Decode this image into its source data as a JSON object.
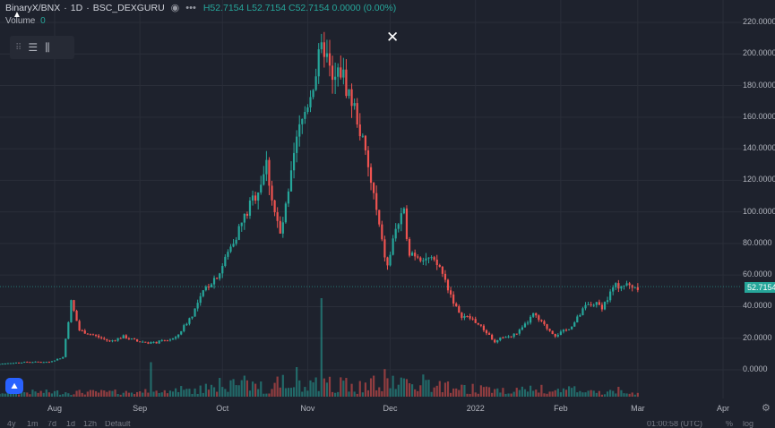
{
  "legend": {
    "symbol": "BinaryX/BNX",
    "interval": "1D",
    "exchange": "BSC_DEXGURU",
    "ohlc": "H52.7154 L52.7154 C52.7154 0.0000 (0.00%)",
    "volume_label": "Volume",
    "volume_value": "0"
  },
  "close_label": "✕",
  "current_price": "52.7154",
  "bottom_toolbar": [
    "4y",
    "1m",
    "7d",
    "1d",
    "12h",
    "Default"
  ],
  "bottom_time": "01:00:58 (UTC)",
  "bottom_right": [
    "%",
    "log"
  ],
  "colors": {
    "up": "#26a69a",
    "down": "#ef5350",
    "background": "#1e222d",
    "grid": "#2a2e39"
  },
  "icons": [
    "eye-icon",
    "more-icon",
    "grip-icon",
    "indicators-icon",
    "settings-icon",
    "close-icon",
    "tradingview-logo-icon",
    "gear-icon"
  ],
  "chart_data": {
    "type": "candlestick",
    "symbol": "BinaryX/BNX",
    "y_ticks": [
      "220.0000",
      "200.0000",
      "180.0000",
      "160.0000",
      "140.0000",
      "120.0000",
      "100.0000",
      "80.0000",
      "60.0000",
      "40.0000",
      "20.0000",
      "0.0000"
    ],
    "y_tick_values": [
      220,
      200,
      180,
      160,
      140,
      120,
      100,
      80,
      60,
      40,
      20,
      0
    ],
    "x_ticks": [
      "Aug",
      "Sep",
      "Oct",
      "Nov",
      "Dec",
      "2022",
      "Feb",
      "Mar",
      "Apr"
    ],
    "x_tick_days": [
      0,
      31,
      61,
      92,
      122,
      153,
      184,
      212,
      243
    ],
    "first_day": -27,
    "anchors": [
      [
        -27,
        3
      ],
      [
        -10,
        5
      ],
      [
        -2,
        5
      ],
      [
        3,
        8
      ],
      [
        6,
        43
      ],
      [
        9,
        25
      ],
      [
        14,
        22
      ],
      [
        20,
        18
      ],
      [
        25,
        21
      ],
      [
        30,
        18
      ],
      [
        36,
        17
      ],
      [
        44,
        20
      ],
      [
        50,
        35
      ],
      [
        55,
        52
      ],
      [
        60,
        62
      ],
      [
        65,
        82
      ],
      [
        70,
        100
      ],
      [
        74,
        115
      ],
      [
        77,
        130
      ],
      [
        80,
        100
      ],
      [
        82,
        85
      ],
      [
        85,
        110
      ],
      [
        88,
        145
      ],
      [
        92,
        170
      ],
      [
        96,
        195
      ],
      [
        98,
        205
      ],
      [
        101,
        180
      ],
      [
        104,
        190
      ],
      [
        107,
        175
      ],
      [
        110,
        160
      ],
      [
        113,
        135
      ],
      [
        116,
        110
      ],
      [
        119,
        80
      ],
      [
        121,
        65
      ],
      [
        124,
        90
      ],
      [
        127,
        98
      ],
      [
        129,
        75
      ],
      [
        133,
        72
      ],
      [
        136,
        70
      ],
      [
        140,
        65
      ],
      [
        143,
        52
      ],
      [
        147,
        35
      ],
      [
        152,
        32
      ],
      [
        158,
        22
      ],
      [
        160,
        17
      ],
      [
        163,
        21
      ],
      [
        166,
        21
      ],
      [
        170,
        26
      ],
      [
        174,
        35
      ],
      [
        178,
        28
      ],
      [
        182,
        22
      ],
      [
        186,
        25
      ],
      [
        189,
        30
      ],
      [
        193,
        40
      ],
      [
        196,
        42
      ],
      [
        199,
        40
      ],
      [
        201,
        45
      ],
      [
        203,
        52
      ],
      [
        206,
        54
      ],
      [
        210,
        53
      ],
      [
        212,
        52.7154
      ]
    ],
    "volume_spikes": [
      [
        35,
        0.35
      ],
      [
        97,
        1.0
      ],
      [
        88,
        0.3
      ],
      [
        120,
        0.28
      ],
      [
        177,
        0.12
      ],
      [
        205,
        0.1
      ]
    ]
  }
}
